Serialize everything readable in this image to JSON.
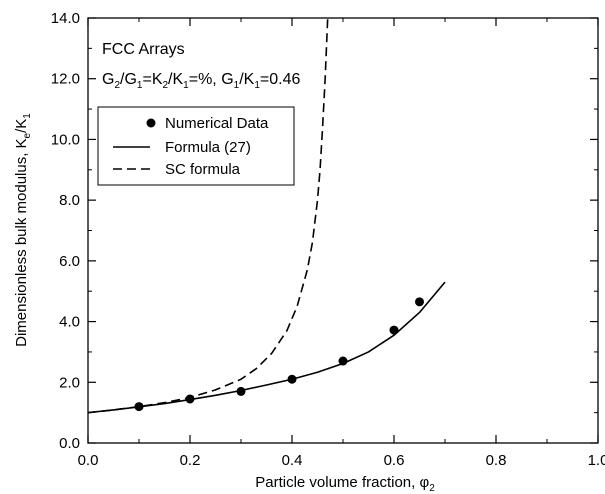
{
  "chart_data": {
    "type": "line",
    "xlabel": "Particle volume fraction, φ",
    "xlabel_sub": "2",
    "ylabel": "Dimensionless bulk modulus, K",
    "ylabel_sub1": "e",
    "ylabel_mid": "/K",
    "ylabel_sub2": "1",
    "xlim": [
      0.0,
      1.0
    ],
    "ylim": [
      0.0,
      14.0
    ],
    "x_ticks": [
      0.0,
      0.2,
      0.4,
      0.6,
      0.8,
      1.0
    ],
    "y_ticks": [
      0.0,
      2.0,
      4.0,
      6.0,
      8.0,
      10.0,
      12.0,
      14.0
    ],
    "x_tick_labels": [
      "0.0",
      "0.2",
      "0.4",
      "0.6",
      "0.8",
      "1.0"
    ],
    "y_tick_labels": [
      "0.0",
      "2.0",
      "4.0",
      "6.0",
      "8.0",
      "10.0",
      "12.0",
      "14.0"
    ],
    "grid": false,
    "annotations": {
      "title": "FCC Arrays",
      "params": [
        {
          "t": "G",
          "s": ""
        },
        {
          "t": "",
          "s": "2"
        },
        {
          "t": "/G",
          "s": ""
        },
        {
          "t": "",
          "s": "1"
        },
        {
          "t": "=K",
          "s": ""
        },
        {
          "t": "",
          "s": "2"
        },
        {
          "t": "/K",
          "s": ""
        },
        {
          "t": "",
          "s": "1"
        },
        {
          "t": "=%, G",
          "s": ""
        },
        {
          "t": "",
          "s": "1"
        },
        {
          "t": "/K",
          "s": ""
        },
        {
          "t": "",
          "s": "1"
        },
        {
          "t": "=0.46",
          "s": ""
        }
      ]
    },
    "legend": {
      "placement": "top-left",
      "entries": [
        "Numerical Data",
        "Formula (27)",
        "SC formula"
      ]
    },
    "series": [
      {
        "name": "Numerical Data",
        "style": "markers",
        "x": [
          0.1,
          0.2,
          0.3,
          0.4,
          0.5,
          0.6,
          0.65
        ],
        "y": [
          1.2,
          1.45,
          1.7,
          2.1,
          2.7,
          3.72,
          4.65
        ]
      },
      {
        "name": "Formula (27)",
        "style": "solid",
        "x": [
          0.0,
          0.05,
          0.1,
          0.15,
          0.2,
          0.25,
          0.3,
          0.35,
          0.4,
          0.45,
          0.5,
          0.55,
          0.6,
          0.65,
          0.7
        ],
        "y": [
          1.0,
          1.09,
          1.19,
          1.3,
          1.43,
          1.57,
          1.73,
          1.91,
          2.1,
          2.33,
          2.62,
          3.0,
          3.55,
          4.3,
          5.3
        ]
      },
      {
        "name": "SC formula",
        "style": "dashed",
        "x": [
          0.0,
          0.05,
          0.1,
          0.15,
          0.2,
          0.25,
          0.3,
          0.33,
          0.36,
          0.39,
          0.41,
          0.43,
          0.44,
          0.45,
          0.455,
          0.46,
          0.465,
          0.47
        ],
        "y": [
          1.0,
          1.09,
          1.2,
          1.33,
          1.5,
          1.75,
          2.1,
          2.45,
          2.95,
          3.7,
          4.5,
          5.7,
          6.6,
          8.0,
          9.0,
          10.4,
          12.0,
          14.0
        ]
      }
    ]
  }
}
